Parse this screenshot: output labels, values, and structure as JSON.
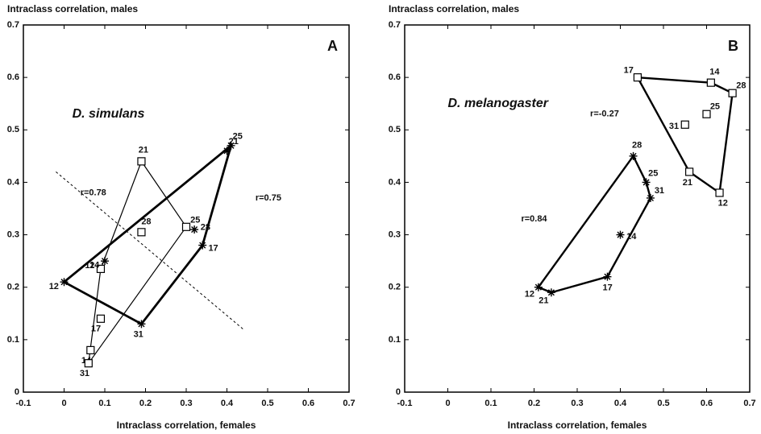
{
  "chart_data": [
    {
      "type": "scatter",
      "panel_label": "A",
      "species": "D. simulans",
      "xlabel": "Intraclass correlation, females",
      "ylabel": "Intraclass correlation, males",
      "xlim": [
        -0.1,
        0.7
      ],
      "ylim": [
        0,
        0.7
      ],
      "xticks": [
        -0.1,
        0,
        0.1,
        0.2,
        0.3,
        0.4,
        0.5,
        0.6,
        0.7
      ],
      "yticks": [
        0,
        0.1,
        0.2,
        0.3,
        0.4,
        0.5,
        0.6,
        0.7
      ],
      "series": [
        {
          "marker": "square",
          "color": "#000000",
          "line_width": 1.2,
          "labels": [
            "12",
            "14",
            "17",
            "21",
            "25",
            "28",
            "31"
          ],
          "x": [
            0.09,
            0.065,
            0.09,
            0.19,
            0.3,
            0.19,
            0.06
          ],
          "values": [
            0.235,
            0.08,
            0.14,
            0.44,
            0.315,
            0.305,
            0.055
          ]
        },
        {
          "marker": "star",
          "color": "#000000",
          "line_width": 2.8,
          "labels": [
            "12",
            "14",
            "17",
            "21",
            "25",
            "28",
            "31"
          ],
          "x": [
            0.0,
            0.1,
            0.34,
            0.4,
            0.41,
            0.32,
            0.19
          ],
          "values": [
            0.21,
            0.25,
            0.28,
            0.46,
            0.47,
            0.31,
            0.13
          ]
        }
      ],
      "annotations": [
        "r=0.78",
        "r=0.75"
      ],
      "reference_line": {
        "x": [
          -0.02,
          0.44
        ],
        "values": [
          0.42,
          0.12
        ]
      }
    },
    {
      "type": "scatter",
      "panel_label": "B",
      "species": "D. melanogaster",
      "xlabel": "Intraclass correlation, females",
      "ylabel": "Intraclass correlation, males",
      "xlim": [
        -0.1,
        0.7
      ],
      "ylim": [
        0,
        0.7
      ],
      "xticks": [
        -0.1,
        0,
        0.1,
        0.2,
        0.3,
        0.4,
        0.5,
        0.6,
        0.7
      ],
      "yticks": [
        0,
        0.1,
        0.2,
        0.3,
        0.4,
        0.5,
        0.6,
        0.7
      ],
      "series": [
        {
          "marker": "square",
          "color": "#000000",
          "line_width": 2.4,
          "labels": [
            "12",
            "14",
            "17",
            "21",
            "25",
            "28",
            "31"
          ],
          "x": [
            0.63,
            0.61,
            0.44,
            0.56,
            0.6,
            0.66,
            0.55
          ],
          "values": [
            0.38,
            0.59,
            0.6,
            0.42,
            0.53,
            0.57,
            0.51
          ]
        },
        {
          "marker": "star",
          "color": "#000000",
          "line_width": 2.4,
          "labels": [
            "12",
            "14",
            "17",
            "21",
            "25",
            "28",
            "31"
          ],
          "x": [
            0.21,
            0.4,
            0.37,
            0.24,
            0.46,
            0.43,
            0.47
          ],
          "values": [
            0.2,
            0.3,
            0.22,
            0.19,
            0.4,
            0.45,
            0.37
          ]
        }
      ],
      "annotations": [
        "r=-0.27",
        "r=0.84"
      ]
    }
  ]
}
